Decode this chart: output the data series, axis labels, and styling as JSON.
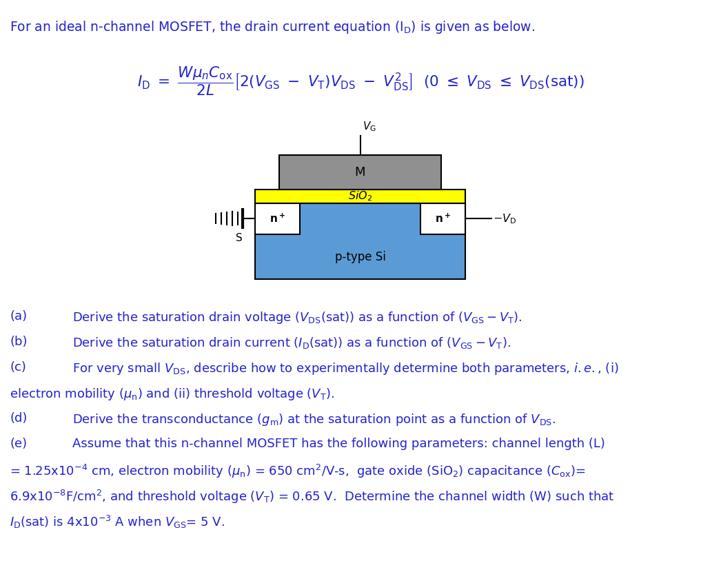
{
  "bg_color": "#ffffff",
  "text_color": "#2222cc",
  "diagram_color_ptype": "#5b9bd5",
  "diagram_color_sio2": "#ffff00",
  "diagram_color_metal": "#909090",
  "diagram_color_nplus": "#ffffff",
  "diagram_border": "#000000",
  "intro_text": "For an ideal n-channel MOSFET, the drain current equation (I",
  "fig_width": 10.46,
  "fig_height": 8.3,
  "dpi": 100,
  "part_a": "Derive the saturation drain voltage (V",
  "part_b": "Derive the saturation drain current (I",
  "part_c1": "For very small V",
  "part_c2": "electron mobility (",
  "part_d": "Derive the transconductance (g",
  "part_e1": "Assume that this n-channel MOSFET has the following parameters: channel length (L)",
  "part_e2": "= 1.25x10",
  "part_e3": "6.9x10",
  "part_e4": "I"
}
